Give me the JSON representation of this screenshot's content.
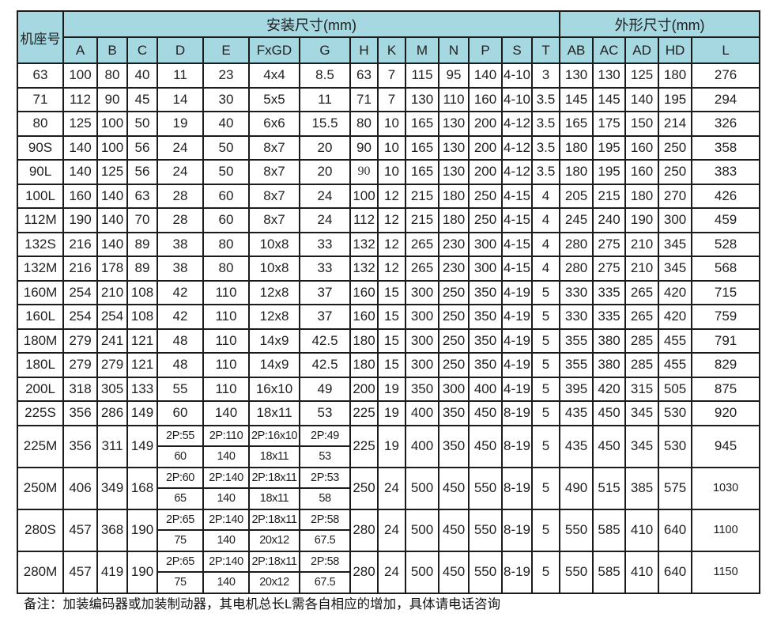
{
  "page": {
    "note": "备注：加装编码器或加装制动器，其电机总长L需各自相应的增加，具体请电话咨询"
  },
  "colors": {
    "header_bg": "#a6d8e2",
    "border": "#1b1b1b"
  },
  "table": {
    "header": {
      "frame_label": "机座号",
      "install_group": "安装尺寸(mm)",
      "outline_group": "外形尺寸(mm)",
      "install_cols": [
        "A",
        "B",
        "C",
        "D",
        "E",
        "FxGD",
        "G",
        "H",
        "K",
        "M",
        "N",
        "P",
        "S",
        "T"
      ],
      "outline_cols": [
        "AB",
        "AC",
        "AD",
        "HD",
        "L"
      ]
    },
    "col_keys": [
      "a",
      "b",
      "c",
      "d",
      "e",
      "fxgd",
      "g",
      "h",
      "k",
      "m",
      "n",
      "p",
      "s",
      "t",
      "ab",
      "ac",
      "ad",
      "hd",
      "l"
    ],
    "rows": [
      {
        "frame": "63",
        "cells": [
          "100",
          "80",
          "40",
          "11",
          "23",
          "4x4",
          "8.5",
          "63",
          "7",
          "115",
          "95",
          "140",
          "4-10",
          "3",
          "130",
          "130",
          "125",
          "180",
          "276"
        ]
      },
      {
        "frame": "71",
        "cells": [
          "112",
          "90",
          "45",
          "14",
          "30",
          "5x5",
          "11",
          "71",
          "7",
          "130",
          "110",
          "160",
          "4-10",
          "3.5",
          "145",
          "145",
          "140",
          "195",
          "294"
        ]
      },
      {
        "frame": "80",
        "cells": [
          "125",
          "100",
          "50",
          "19",
          "40",
          "6x6",
          "15.5",
          "80",
          "10",
          "165",
          "130",
          "200",
          "4-12",
          "3.5",
          "165",
          "175",
          "150",
          "214",
          "326"
        ]
      },
      {
        "frame": "90S",
        "cells": [
          "140",
          "100",
          "56",
          "24",
          "50",
          "8x7",
          "20",
          "90",
          "10",
          "165",
          "130",
          "200",
          "4-12",
          "3.5",
          "180",
          "195",
          "160",
          "250",
          "358"
        ]
      },
      {
        "frame": "90L",
        "cells": [
          "140",
          "125",
          "56",
          "24",
          "50",
          "8x7",
          "20",
          "90",
          "10",
          "165",
          "130",
          "200",
          "4-12",
          "3.5",
          "180",
          "195",
          "160",
          "250",
          "383"
        ],
        "serif_cells": [
          7
        ]
      },
      {
        "frame": "100L",
        "cells": [
          "160",
          "140",
          "63",
          "28",
          "60",
          "8x7",
          "24",
          "100",
          "12",
          "215",
          "180",
          "250",
          "4-15",
          "4",
          "205",
          "215",
          "180",
          "270",
          "426"
        ]
      },
      {
        "frame": "112M",
        "cells": [
          "190",
          "140",
          "70",
          "28",
          "60",
          "8x7",
          "24",
          "112",
          "12",
          "215",
          "180",
          "250",
          "4-15",
          "4",
          "245",
          "240",
          "190",
          "300",
          "459"
        ]
      },
      {
        "frame": "132S",
        "cells": [
          "216",
          "140",
          "89",
          "38",
          "80",
          "10x8",
          "33",
          "132",
          "12",
          "265",
          "230",
          "300",
          "4-15",
          "4",
          "280",
          "275",
          "210",
          "345",
          "528"
        ]
      },
      {
        "frame": "132M",
        "cells": [
          "216",
          "178",
          "89",
          "38",
          "80",
          "10x8",
          "33",
          "132",
          "12",
          "265",
          "230",
          "300",
          "4-15",
          "4",
          "280",
          "275",
          "210",
          "345",
          "568"
        ]
      },
      {
        "frame": "160M",
        "cells": [
          "254",
          "210",
          "108",
          "42",
          "110",
          "12x8",
          "37",
          "160",
          "15",
          "300",
          "250",
          "350",
          "4-19",
          "5",
          "330",
          "335",
          "265",
          "420",
          "715"
        ]
      },
      {
        "frame": "160L",
        "cells": [
          "254",
          "254",
          "108",
          "42",
          "110",
          "12x8",
          "37",
          "160",
          "15",
          "300",
          "250",
          "350",
          "4-19",
          "5",
          "330",
          "335",
          "265",
          "420",
          "759"
        ]
      },
      {
        "frame": "180M",
        "cells": [
          "279",
          "241",
          "121",
          "48",
          "110",
          "14x9",
          "42.5",
          "180",
          "15",
          "300",
          "250",
          "350",
          "4-19",
          "5",
          "355",
          "380",
          "285",
          "455",
          "791"
        ]
      },
      {
        "frame": "180L",
        "cells": [
          "279",
          "279",
          "121",
          "48",
          "110",
          "14x9",
          "42.5",
          "180",
          "15",
          "300",
          "250",
          "350",
          "4-19",
          "5",
          "355",
          "380",
          "285",
          "455",
          "829"
        ]
      },
      {
        "frame": "200L",
        "cells": [
          "318",
          "305",
          "133",
          "55",
          "110",
          "16x10",
          "49",
          "200",
          "19",
          "350",
          "300",
          "400",
          "4-19",
          "5",
          "395",
          "420",
          "315",
          "505",
          "875"
        ]
      },
      {
        "frame": "225S",
        "cells": [
          "356",
          "286",
          "149",
          "60",
          "140",
          "18x11",
          "53",
          "225",
          "19",
          "400",
          "350",
          "450",
          "8-19",
          "5",
          "435",
          "450",
          "345",
          "530",
          "920"
        ]
      },
      {
        "frame": "225M",
        "split": true,
        "left": [
          "356",
          "311",
          "149"
        ],
        "top": [
          "2P:55",
          "2P:110",
          "2P:16x10",
          "2P:49"
        ],
        "bottom": [
          "60",
          "140",
          "18x11",
          "53"
        ],
        "right": [
          "225",
          "19",
          "400",
          "350",
          "450",
          "8-19",
          "5",
          "435",
          "450",
          "345",
          "530",
          "945"
        ]
      },
      {
        "frame": "250M",
        "split": true,
        "left": [
          "406",
          "349",
          "168"
        ],
        "top": [
          "2P:60",
          "2P:140",
          "2P:18x11",
          "2P:53"
        ],
        "bottom": [
          "65",
          "140",
          "18x11",
          "58"
        ],
        "right": [
          "250",
          "24",
          "500",
          "450",
          "550",
          "8-19",
          "5",
          "490",
          "515",
          "385",
          "575",
          "1030"
        ]
      },
      {
        "frame": "280S",
        "split": true,
        "left": [
          "457",
          "368",
          "190"
        ],
        "top": [
          "2P:65",
          "2P:140",
          "2P:18x11",
          "2P:58"
        ],
        "bottom": [
          "75",
          "140",
          "20x12",
          "67.5"
        ],
        "right": [
          "280",
          "24",
          "500",
          "450",
          "550",
          "8-19",
          "5",
          "550",
          "585",
          "410",
          "640",
          "1100"
        ]
      },
      {
        "frame": "280M",
        "split": true,
        "left": [
          "457",
          "419",
          "190"
        ],
        "top": [
          "2P:65",
          "2P:140",
          "2P:18x11",
          "2P:58"
        ],
        "bottom": [
          "75",
          "140",
          "20x12",
          "67.5"
        ],
        "right": [
          "280",
          "24",
          "500",
          "450",
          "550",
          "8-19",
          "5",
          "550",
          "585",
          "410",
          "640",
          "1150"
        ]
      }
    ]
  }
}
